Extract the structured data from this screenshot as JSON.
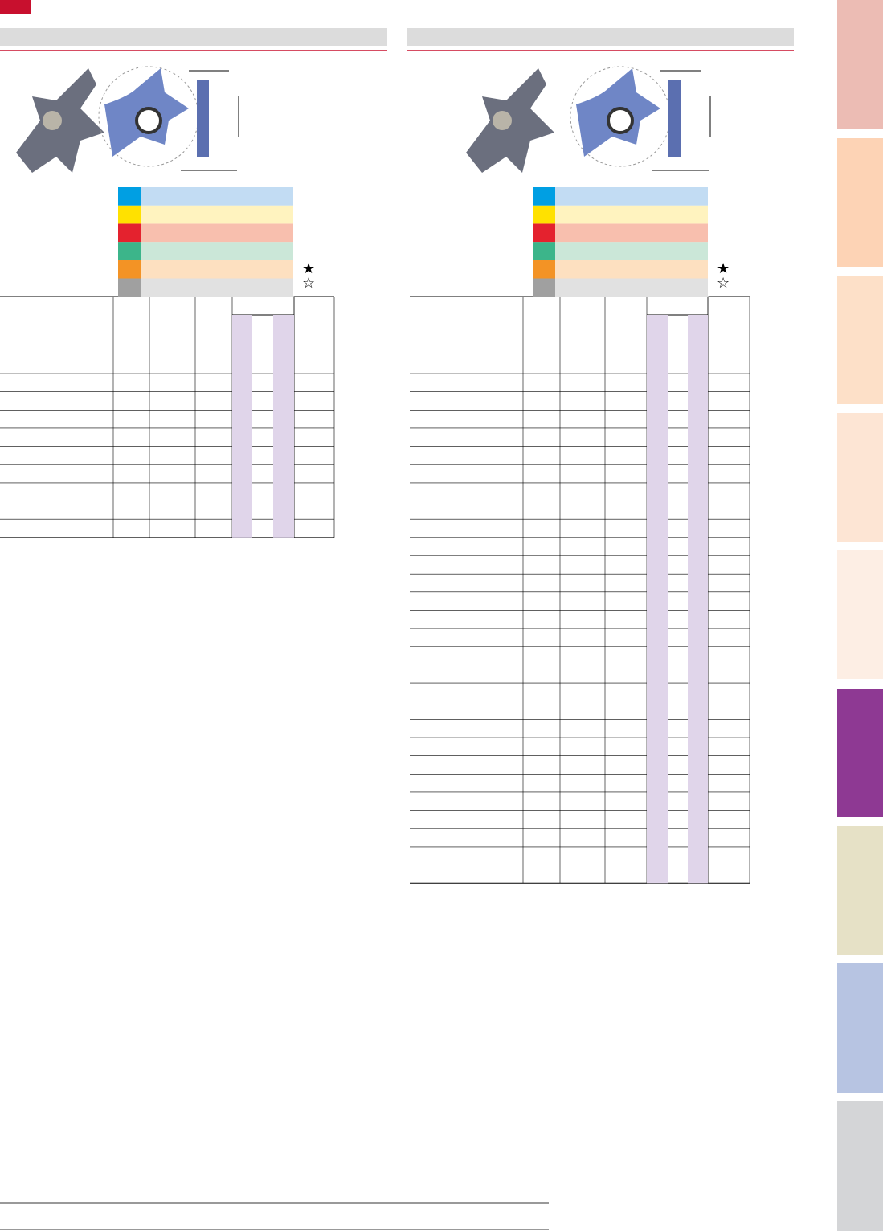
{
  "left": {
    "legend": {
      "stock": "★",
      "order": "☆"
    }
  },
  "right": {
    "legend": {
      "stock": "★",
      "order": "☆"
    }
  }
}
